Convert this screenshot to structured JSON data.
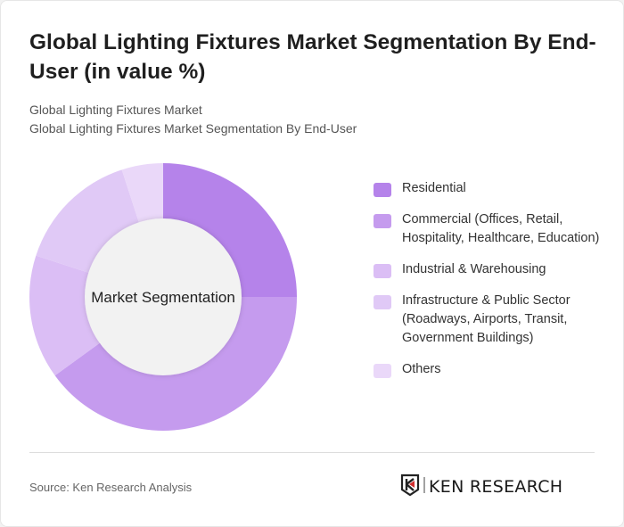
{
  "title": "Global Lighting Fixtures Market Segmentation By End-User (in value %)",
  "subtitle1": "Global Lighting Fixtures Market",
  "subtitle2": "Global Lighting Fixtures Market Segmentation By End-User",
  "chart_data": {
    "type": "pie",
    "variant": "donut",
    "center_label": "Market Segmentation",
    "categories": [
      "Residential",
      "Commercial (Offices, Retail, Hospitality, Healthcare, Education)",
      "Industrial & Warehousing",
      "Infrastructure & Public Sector (Roadways, Airports, Transit, Government Buildings)",
      "Others"
    ],
    "values": [
      25,
      40,
      15,
      15,
      5
    ],
    "colors": [
      "#b583ea",
      "#c59bee",
      "#dbbef5",
      "#e0c9f6",
      "#ead8f9"
    ],
    "legend_position": "right"
  },
  "source": "Source: Ken Research Analysis",
  "logo_text": "KEN RESEARCH"
}
